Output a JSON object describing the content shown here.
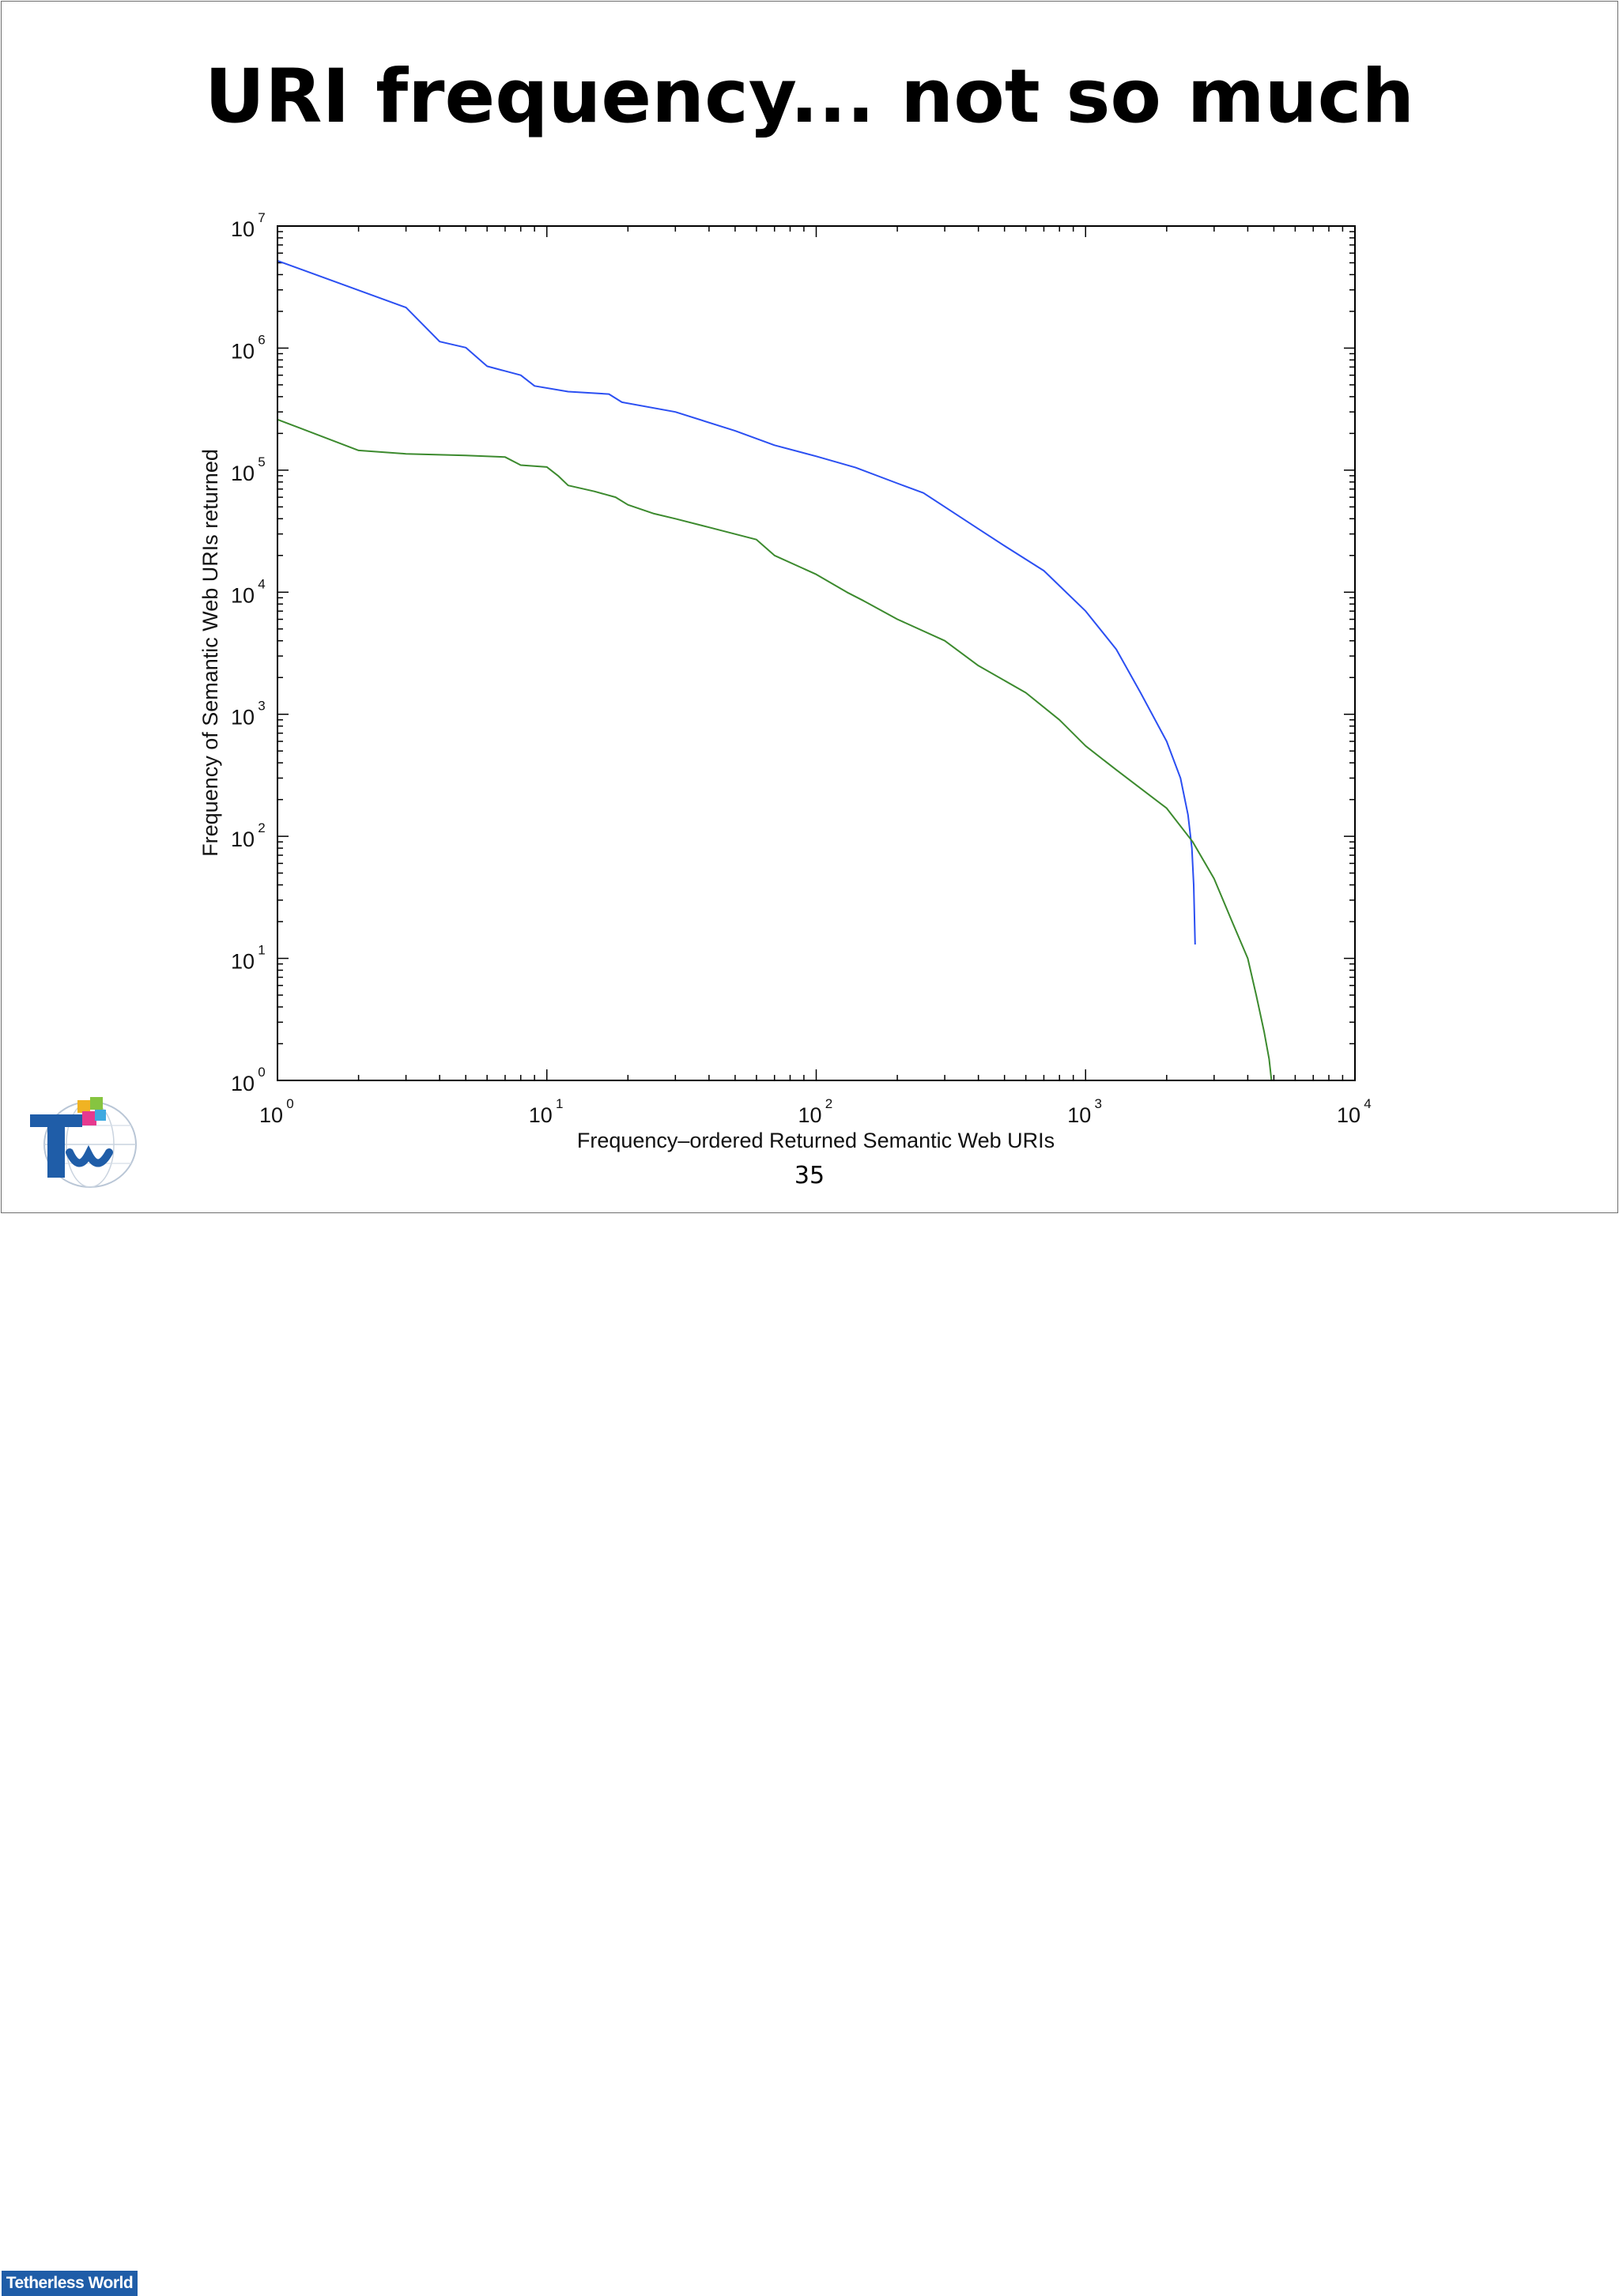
{
  "slide": {
    "title": "URI frequency... not so much",
    "page_number": "35"
  },
  "logo": {
    "caption": "Tetherless World",
    "icon": "tetherless-world-logo"
  },
  "colors": {
    "series_blue": "#2b4ff2",
    "series_green": "#3c8a2e",
    "axes": "#000000",
    "logo_blue": "#1f5da8"
  },
  "chart_data": {
    "type": "line",
    "title": "",
    "xlabel": "Frequency–ordered Returned Semantic Web URIs",
    "ylabel": "Frequency of Semantic Web URIs returned",
    "xscale": "log",
    "yscale": "log",
    "xlim": [
      1,
      10000
    ],
    "ylim": [
      1,
      10000000
    ],
    "xticks": [
      {
        "base": "10",
        "exp": "0"
      },
      {
        "base": "10",
        "exp": "1"
      },
      {
        "base": "10",
        "exp": "2"
      },
      {
        "base": "10",
        "exp": "3"
      },
      {
        "base": "10",
        "exp": "4"
      }
    ],
    "yticks": [
      {
        "base": "10",
        "exp": "0"
      },
      {
        "base": "10",
        "exp": "1"
      },
      {
        "base": "10",
        "exp": "2"
      },
      {
        "base": "10",
        "exp": "3"
      },
      {
        "base": "10",
        "exp": "4"
      },
      {
        "base": "10",
        "exp": "5"
      },
      {
        "base": "10",
        "exp": "6"
      },
      {
        "base": "10",
        "exp": "7"
      }
    ],
    "grid": false,
    "legend": "none",
    "series": [
      {
        "color": "#2b4ff2",
        "points": [
          [
            1,
            5200000
          ],
          [
            3,
            2150000
          ],
          [
            4,
            1130000
          ],
          [
            5,
            1010000
          ],
          [
            6,
            710000
          ],
          [
            8,
            600000
          ],
          [
            9,
            490000
          ],
          [
            12,
            440000
          ],
          [
            17,
            420000
          ],
          [
            19,
            360000
          ],
          [
            30,
            300000
          ],
          [
            50,
            210000
          ],
          [
            70,
            160000
          ],
          [
            100,
            130000
          ],
          [
            140,
            105000
          ],
          [
            200,
            78000
          ],
          [
            250,
            65000
          ],
          [
            300,
            50000
          ],
          [
            400,
            33000
          ],
          [
            500,
            24000
          ],
          [
            700,
            15000
          ],
          [
            1000,
            7000
          ],
          [
            1300,
            3400
          ],
          [
            1600,
            1500
          ],
          [
            2000,
            600
          ],
          [
            2250,
            300
          ],
          [
            2400,
            150
          ],
          [
            2480,
            80
          ],
          [
            2520,
            40
          ],
          [
            2550,
            13
          ]
        ]
      },
      {
        "color": "#3c8a2e",
        "points": [
          [
            1,
            260000
          ],
          [
            2,
            145000
          ],
          [
            3,
            136000
          ],
          [
            5,
            132000
          ],
          [
            7,
            128000
          ],
          [
            8,
            110000
          ],
          [
            10,
            106000
          ],
          [
            11,
            90000
          ],
          [
            12,
            75000
          ],
          [
            15,
            67000
          ],
          [
            18,
            60000
          ],
          [
            20,
            52000
          ],
          [
            25,
            44000
          ],
          [
            30,
            40000
          ],
          [
            40,
            34000
          ],
          [
            60,
            27000
          ],
          [
            70,
            20000
          ],
          [
            100,
            14000
          ],
          [
            130,
            10000
          ],
          [
            150,
            8500
          ],
          [
            200,
            6000
          ],
          [
            300,
            4000
          ],
          [
            400,
            2500
          ],
          [
            600,
            1500
          ],
          [
            800,
            900
          ],
          [
            1000,
            550
          ],
          [
            1300,
            350
          ],
          [
            2000,
            170
          ],
          [
            2500,
            90
          ],
          [
            3000,
            45
          ],
          [
            3500,
            20
          ],
          [
            4000,
            10
          ],
          [
            4300,
            5
          ],
          [
            4600,
            2.5
          ],
          [
            4800,
            1.5
          ],
          [
            4900,
            1
          ]
        ]
      }
    ]
  }
}
